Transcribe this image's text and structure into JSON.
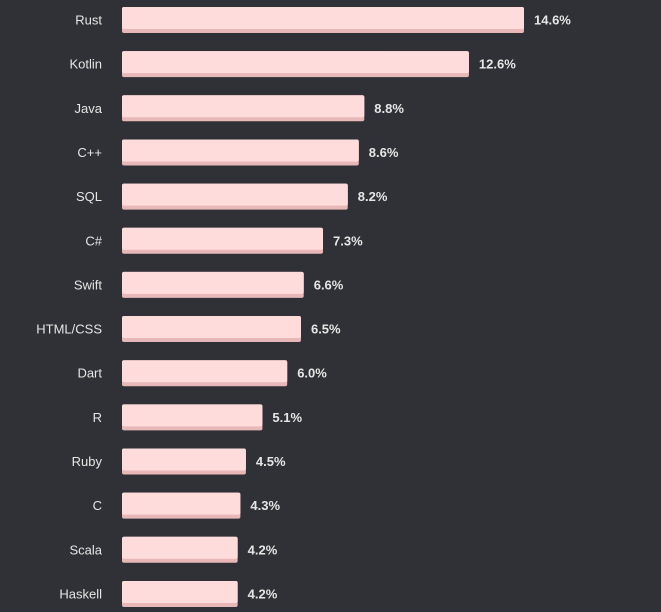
{
  "chart_data": {
    "type": "bar",
    "orientation": "horizontal",
    "title": "",
    "xlabel": "",
    "ylabel": "",
    "categories": [
      "Rust",
      "Kotlin",
      "Java",
      "C++",
      "SQL",
      "C#",
      "Swift",
      "HTML/CSS",
      "Dart",
      "R",
      "Ruby",
      "C",
      "Scala",
      "Haskell"
    ],
    "values": [
      14.6,
      12.6,
      8.8,
      8.6,
      8.2,
      7.3,
      6.6,
      6.5,
      6.0,
      5.1,
      4.5,
      4.3,
      4.2,
      4.2
    ],
    "value_labels": [
      "14.6%",
      "12.6%",
      "8.8%",
      "8.6%",
      "8.2%",
      "7.3%",
      "6.6%",
      "6.5%",
      "6.0%",
      "5.1%",
      "4.5%",
      "4.3%",
      "4.2%",
      "4.2%"
    ],
    "xlim": [
      0,
      14.6
    ],
    "grid": false,
    "legend": "none",
    "colors": {
      "background": "#2f3136",
      "bar": "#ffdcdc",
      "bar_shadow": "#e8b8b8",
      "text": "#e6e6e6"
    }
  }
}
